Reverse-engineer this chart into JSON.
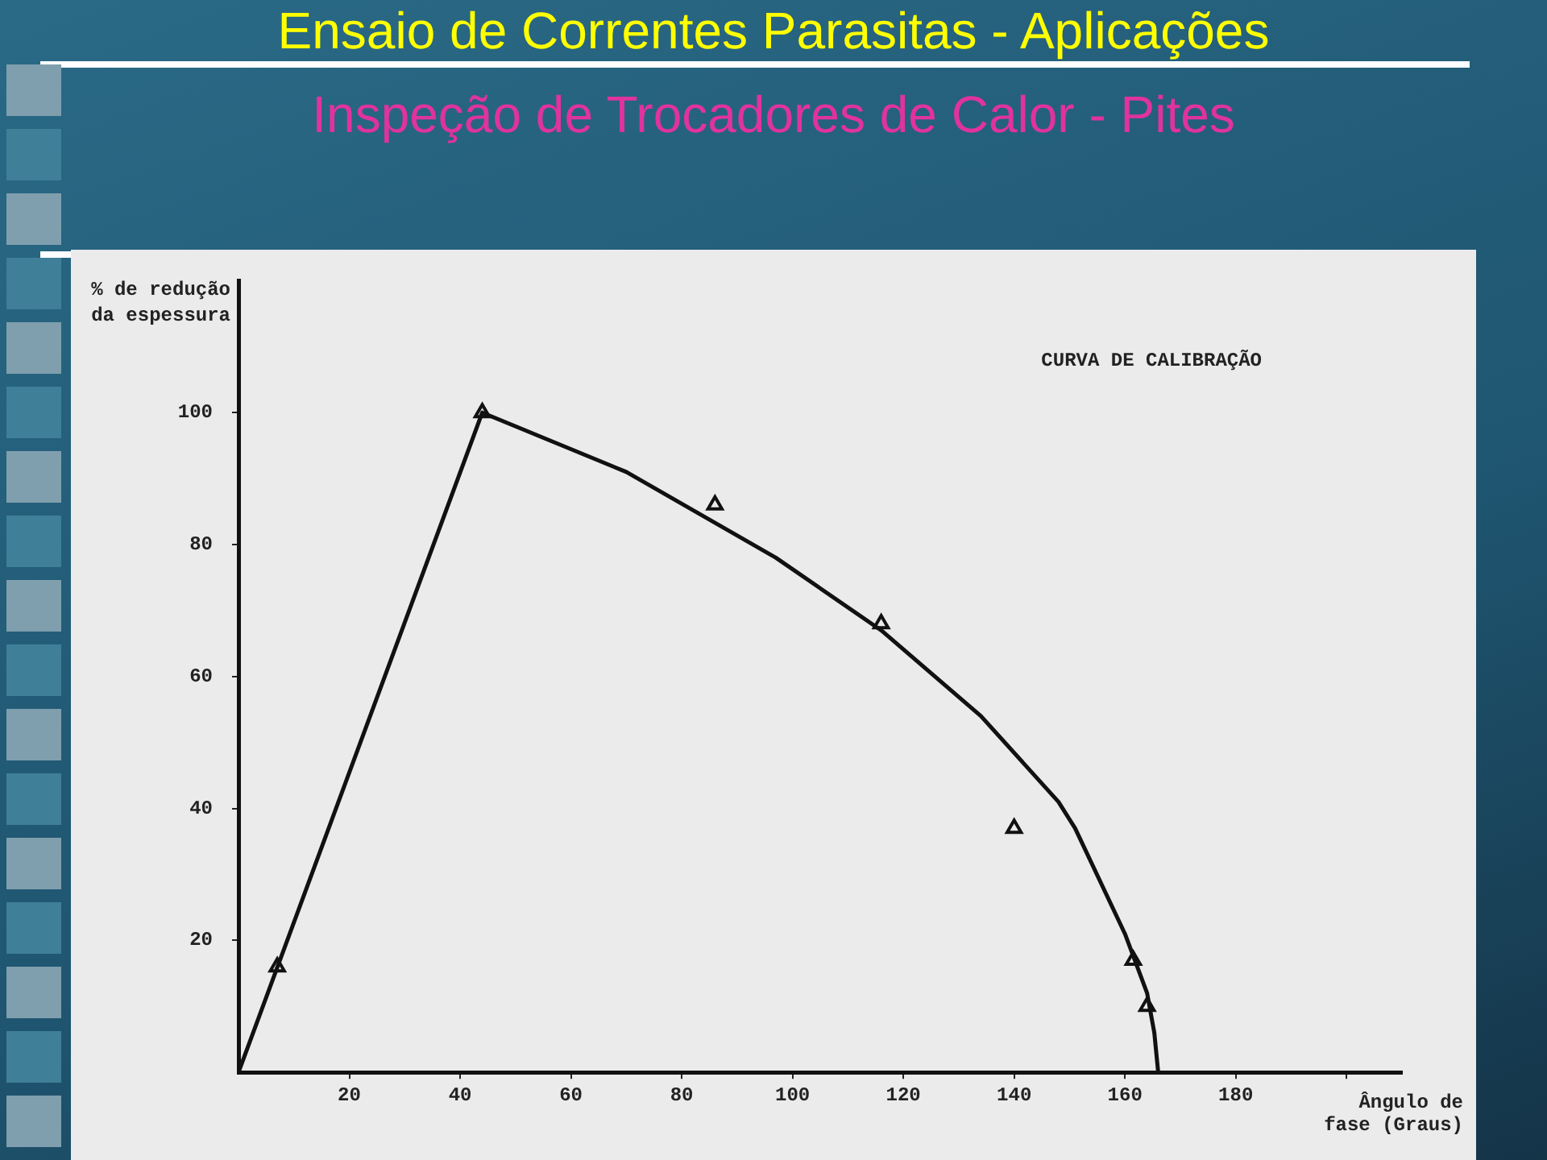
{
  "chart_data": {
    "type": "line",
    "title": "Ensaio de Correntes Parasitas - Aplicações",
    "subtitle": "Inspeção de Trocadores de Calor - Pites",
    "xlabel": "Ângulo de fase (Graus)",
    "ylabel": "% de redução da espessura",
    "annotations": [
      "CURVA DE CALIBRAÇÃO"
    ],
    "series": [
      {
        "color": "#111111",
        "marker": "none",
        "x": [
          0,
          44,
          70,
          97,
          116,
          134,
          148,
          151,
          160,
          164,
          165.3,
          166
        ],
        "values": [
          0,
          100,
          91,
          78,
          67,
          54,
          41,
          37,
          21,
          12,
          6,
          0
        ]
      },
      {
        "type": "scatter",
        "color": "#111111",
        "marker": "triangle",
        "x": [
          7,
          44,
          86,
          116,
          140,
          161.5,
          164
        ],
        "values": [
          16,
          100,
          86,
          68,
          37,
          17,
          10
        ]
      }
    ],
    "xlim": [
      0,
      210
    ],
    "ylim": [
      0,
      120
    ],
    "xticks": [
      20,
      40,
      60,
      80,
      100,
      120,
      140,
      160,
      180,
      {
        "value": 200,
        "label": null
      }
    ],
    "yticks": [
      20,
      40,
      60,
      80,
      100
    ],
    "grid": false,
    "legend": false
  }
}
